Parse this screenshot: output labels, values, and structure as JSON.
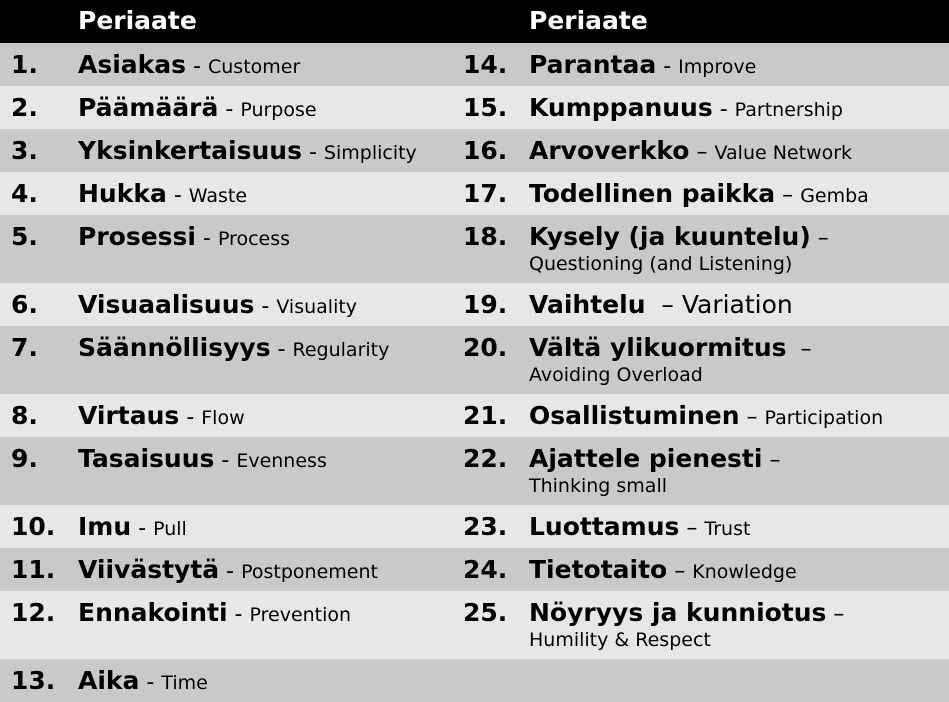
{
  "header": {
    "left": "Periaate",
    "right": "Periaate"
  },
  "colors": {
    "header_bg": "#000000",
    "row_dark": "#c9c9c9",
    "row_light": "#e7e7e7",
    "text": "#000000"
  },
  "left": [
    {
      "num": "1.",
      "term": "Asiakas",
      "sep": " - ",
      "en": "Customer"
    },
    {
      "num": "2.",
      "term": "Päämäärä",
      "sep": " - ",
      "en": "Purpose"
    },
    {
      "num": "3.",
      "term": "Yksinkertaisuus",
      "sep": " - ",
      "en": "Simplicity"
    },
    {
      "num": "4.",
      "term": "Hukka",
      "sep": " - ",
      "en": "Waste"
    },
    {
      "num": "5.",
      "term": "Prosessi",
      "sep": " - ",
      "en": "Process"
    },
    {
      "num": "6.",
      "term": "Visuaalisuus",
      "sep": " - ",
      "en": "Visuality"
    },
    {
      "num": "7.",
      "term": "Säännöllisyys",
      "sep": " - ",
      "en": "Regularity"
    },
    {
      "num": "8.",
      "term": "Virtaus",
      "sep": " - ",
      "en": "Flow"
    },
    {
      "num": "9.",
      "term": "Tasaisuus",
      "sep": " - ",
      "en": "Evenness"
    },
    {
      "num": "10.",
      "term": "Imu",
      "sep": " - ",
      "en": "Pull"
    },
    {
      "num": "11.",
      "term": "Viivästytä",
      "sep": " - ",
      "en": "Postponement"
    },
    {
      "num": "12.",
      "term": "Ennakointi",
      "sep": " - ",
      "en": "Prevention"
    },
    {
      "num": "13.",
      "term": "Aika",
      "sep": " - ",
      "en": "Time"
    }
  ],
  "right": [
    {
      "num": "14.",
      "term": "Parantaa",
      "sep": " - ",
      "en": "Improve"
    },
    {
      "num": "15.",
      "term": "Kumppanuus",
      "sep": " - ",
      "en": "Partnership"
    },
    {
      "num": "16.",
      "term": "Arvoverkko",
      "sep": " – ",
      "en": "Value Network"
    },
    {
      "num": "17.",
      "term": "Todellinen paikka",
      "sep": " – ",
      "en": "Gemba"
    },
    {
      "num": "18.",
      "term": "Kysely (ja kuuntelu)",
      "sep": " –",
      "en": "Questioning (and Listening)"
    },
    {
      "num": "19.",
      "term": "Vaihtelu",
      "sep": "  – ",
      "en": "Variation"
    },
    {
      "num": "20.",
      "term": "Vältä ylikuormitus",
      "sep": "  –",
      "en": "Avoiding Overload"
    },
    {
      "num": "21.",
      "term": "Osallistuminen",
      "sep": " – ",
      "en": "Participation"
    },
    {
      "num": "22.",
      "term": "Ajattele pienesti",
      "sep": " –",
      "en": "Thinking small"
    },
    {
      "num": "23.",
      "term": "Luottamus",
      "sep": " – ",
      "en": "Trust"
    },
    {
      "num": "24.",
      "term": "Tietotaito",
      "sep": " – ",
      "en": "Knowledge"
    },
    {
      "num": "25.",
      "term": "Nöyryys ja kunniotus",
      "sep": " –",
      "en": "Humility & Respect"
    }
  ]
}
